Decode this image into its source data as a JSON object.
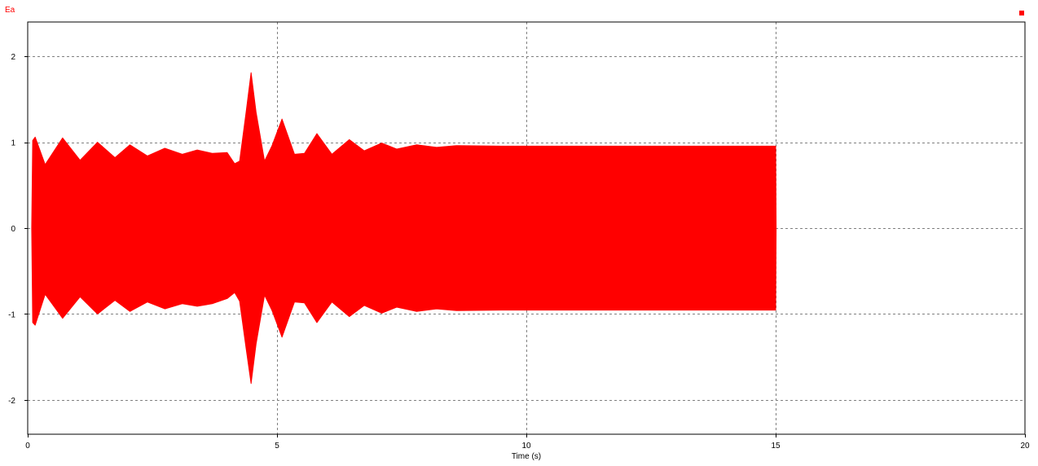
{
  "chart_data": {
    "type": "area",
    "title": "",
    "xlabel": "Time (s)",
    "ylabel": "",
    "xlim": [
      0,
      20
    ],
    "ylim": [
      -2.4,
      2.4
    ],
    "xticks": [
      0,
      5,
      10,
      15,
      20
    ],
    "yticks": [
      2,
      1,
      0,
      -1,
      -2
    ],
    "grid": true,
    "legend": "top-right",
    "series": [
      {
        "name": "Ea",
        "color": "#ff0000",
        "description_kind": "oscillating signal envelope (upper/lower peaks)",
        "envelope": [
          {
            "t": 0.08,
            "upper": 0.0,
            "lower": 0.0
          },
          {
            "t": 0.1,
            "upper": 1.02,
            "lower": -1.1
          },
          {
            "t": 0.15,
            "upper": 1.06,
            "lower": -1.13
          },
          {
            "t": 0.35,
            "upper": 0.74,
            "lower": -0.77
          },
          {
            "t": 0.7,
            "upper": 1.05,
            "lower": -1.05
          },
          {
            "t": 1.05,
            "upper": 0.79,
            "lower": -0.8
          },
          {
            "t": 1.4,
            "upper": 1.0,
            "lower": -1.0
          },
          {
            "t": 1.75,
            "upper": 0.82,
            "lower": -0.84
          },
          {
            "t": 2.05,
            "upper": 0.97,
            "lower": -0.97
          },
          {
            "t": 2.4,
            "upper": 0.84,
            "lower": -0.86
          },
          {
            "t": 2.75,
            "upper": 0.93,
            "lower": -0.94
          },
          {
            "t": 3.1,
            "upper": 0.86,
            "lower": -0.88
          },
          {
            "t": 3.4,
            "upper": 0.91,
            "lower": -0.91
          },
          {
            "t": 3.7,
            "upper": 0.87,
            "lower": -0.88
          },
          {
            "t": 4.0,
            "upper": 0.88,
            "lower": -0.82
          },
          {
            "t": 4.15,
            "upper": 0.75,
            "lower": -0.75
          },
          {
            "t": 4.25,
            "upper": 0.78,
            "lower": -0.85
          },
          {
            "t": 4.38,
            "upper": 1.35,
            "lower": -1.4
          },
          {
            "t": 4.48,
            "upper": 1.81,
            "lower": -1.81
          },
          {
            "t": 4.58,
            "upper": 1.35,
            "lower": -1.35
          },
          {
            "t": 4.75,
            "upper": 0.78,
            "lower": -0.78
          },
          {
            "t": 4.9,
            "upper": 0.96,
            "lower": -0.96
          },
          {
            "t": 5.1,
            "upper": 1.27,
            "lower": -1.27
          },
          {
            "t": 5.35,
            "upper": 0.86,
            "lower": -0.86
          },
          {
            "t": 5.55,
            "upper": 0.87,
            "lower": -0.87
          },
          {
            "t": 5.8,
            "upper": 1.1,
            "lower": -1.1
          },
          {
            "t": 6.1,
            "upper": 0.86,
            "lower": -0.86
          },
          {
            "t": 6.45,
            "upper": 1.03,
            "lower": -1.03
          },
          {
            "t": 6.75,
            "upper": 0.9,
            "lower": -0.9
          },
          {
            "t": 7.1,
            "upper": 0.99,
            "lower": -0.99
          },
          {
            "t": 7.4,
            "upper": 0.92,
            "lower": -0.92
          },
          {
            "t": 7.8,
            "upper": 0.97,
            "lower": -0.97
          },
          {
            "t": 8.2,
            "upper": 0.94,
            "lower": -0.94
          },
          {
            "t": 8.6,
            "upper": 0.96,
            "lower": -0.96
          },
          {
            "t": 9.5,
            "upper": 0.955,
            "lower": -0.955
          },
          {
            "t": 11.0,
            "upper": 0.955,
            "lower": -0.955
          },
          {
            "t": 13.0,
            "upper": 0.955,
            "lower": -0.955
          },
          {
            "t": 15.0,
            "upper": 0.955,
            "lower": -0.955
          },
          {
            "t": 15.01,
            "upper": 0.0,
            "lower": 0.0
          }
        ]
      }
    ]
  }
}
